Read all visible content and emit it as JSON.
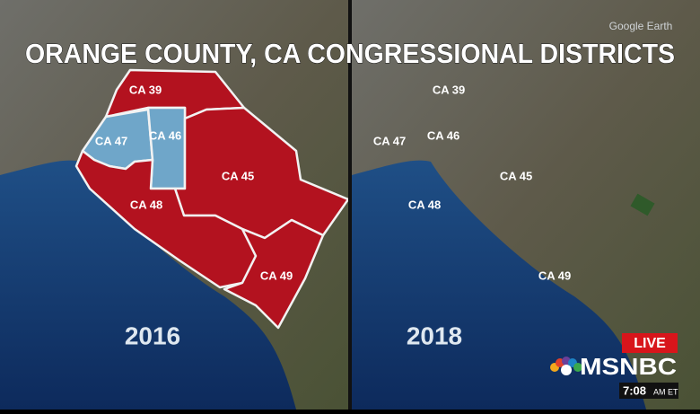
{
  "title": "ORANGE COUNTY, CA CONGRESSIONAL DISTRICTS",
  "watermark": "Google Earth",
  "maps": [
    {
      "year": "2016",
      "districts": [
        {
          "label": "CA 39"
        },
        {
          "label": "CA 47"
        },
        {
          "label": "CA 46"
        },
        {
          "label": "CA 45"
        },
        {
          "label": "CA 48"
        },
        {
          "label": "CA 49"
        }
      ]
    },
    {
      "year": "2018",
      "districts": [
        {
          "label": "CA 39"
        },
        {
          "label": "CA 47"
        },
        {
          "label": "CA 46"
        },
        {
          "label": "CA 45"
        },
        {
          "label": "CA 48"
        },
        {
          "label": "CA 49"
        }
      ]
    }
  ],
  "broadcast": {
    "live": "LIVE",
    "network": "MSNBC",
    "time": "7:08",
    "time_suffix": "AM ET"
  }
}
